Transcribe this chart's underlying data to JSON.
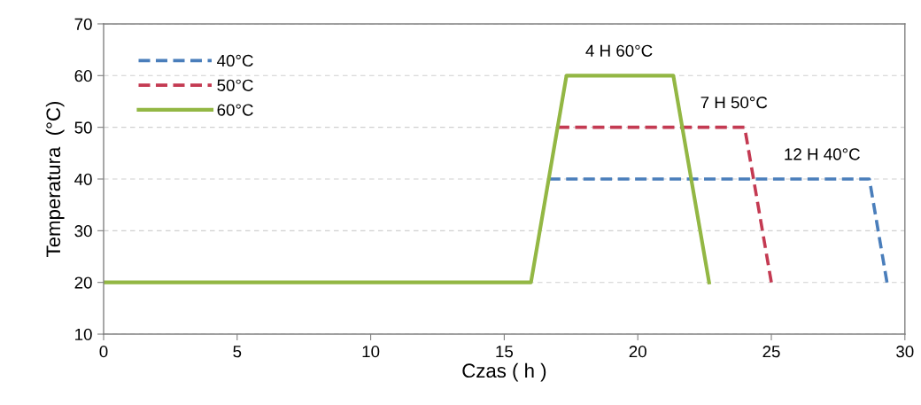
{
  "chart_data": {
    "type": "line",
    "xlabel": "Czas ( h )",
    "ylabel": "Temperatura  (°C)",
    "xlim": [
      0,
      30
    ],
    "xticks": [
      0,
      5,
      10,
      15,
      20,
      25,
      30
    ],
    "ylim": [
      10,
      70
    ],
    "yticks": [
      10,
      20,
      30,
      40,
      50,
      60,
      70
    ],
    "grid": "y",
    "legend": "top left",
    "marker": "none",
    "series": [
      {
        "name": "40°C",
        "color": "#4a7ebb",
        "line_style": "dashed",
        "x": [
          16.67,
          28.67,
          29.33
        ],
        "values": [
          40,
          40,
          20
        ]
      },
      {
        "name": "50°C",
        "color": "#c43a52",
        "line_style": "dashed",
        "x": [
          17,
          24,
          25
        ],
        "values": [
          50,
          50,
          20
        ]
      },
      {
        "name": "60°C",
        "color": "#93b744",
        "line_style": "solid",
        "x": [
          0,
          16,
          17.33,
          21.33,
          22.67
        ],
        "values": [
          20,
          20,
          60,
          60,
          20
        ]
      }
    ],
    "annotations": [
      {
        "text": "4 H 60°C",
        "x": 19.3,
        "y": 60
      },
      {
        "text": "7 H 50°C",
        "x": 23.6,
        "y": 50
      },
      {
        "text": "12 H 40°C",
        "x": 26.9,
        "y": 40
      }
    ]
  }
}
